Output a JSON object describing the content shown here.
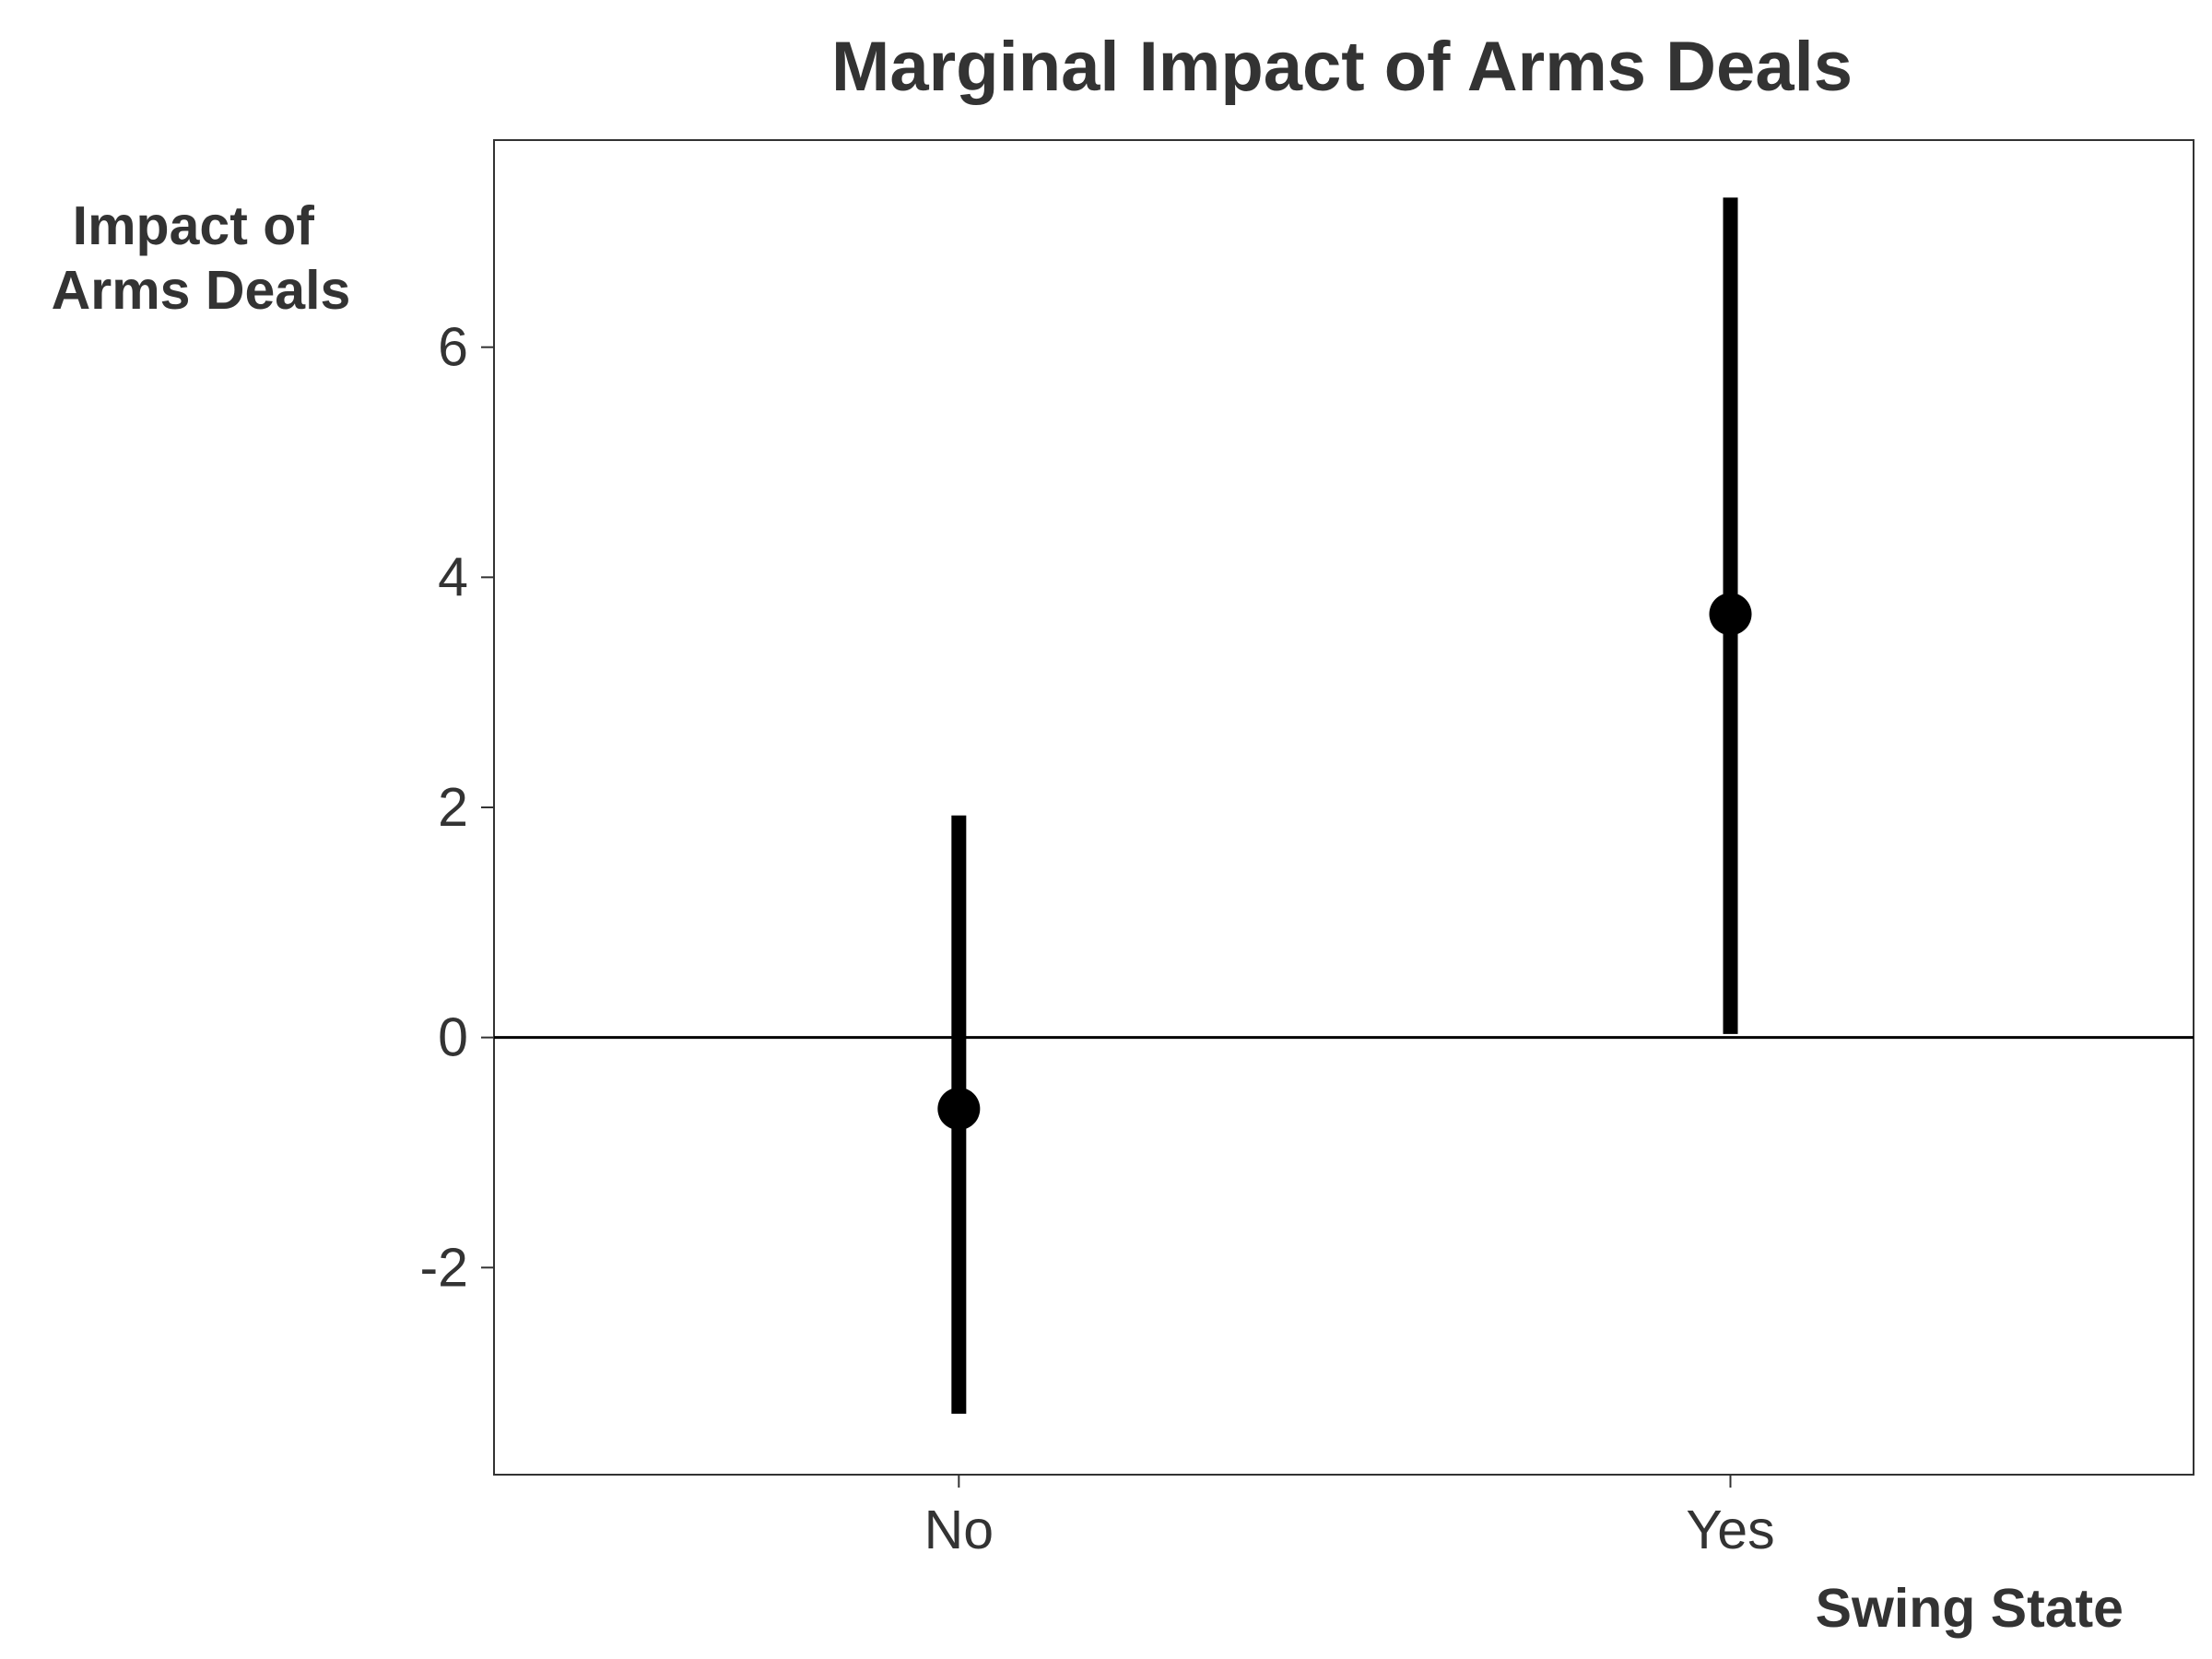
{
  "chart_data": {
    "type": "scatter",
    "title": "Marginal Impact of Arms Deals",
    "ylabel_lines": [
      "Impact of",
      "Arms Deals"
    ],
    "xlabel": "Swing State",
    "categories": [
      "No",
      "Yes"
    ],
    "series": [
      {
        "points": [
          {
            "category": "No",
            "estimate": -0.62,
            "lower": -3.27,
            "upper": 1.93
          },
          {
            "category": "Yes",
            "estimate": 3.68,
            "lower": 0.03,
            "upper": 7.3
          }
        ]
      }
    ],
    "ylim": [
      -3.8,
      7.8
    ],
    "yticks": [
      -2,
      0,
      2,
      4,
      6
    ],
    "ytick_labels": [
      "-2",
      "0",
      "2",
      "4",
      "6"
    ],
    "reference_line_y": 0,
    "grid": false,
    "legend": "none",
    "colors": {
      "marks": "#000000",
      "text": "#333333",
      "frame": "#333333",
      "background": "#ffffff"
    }
  }
}
